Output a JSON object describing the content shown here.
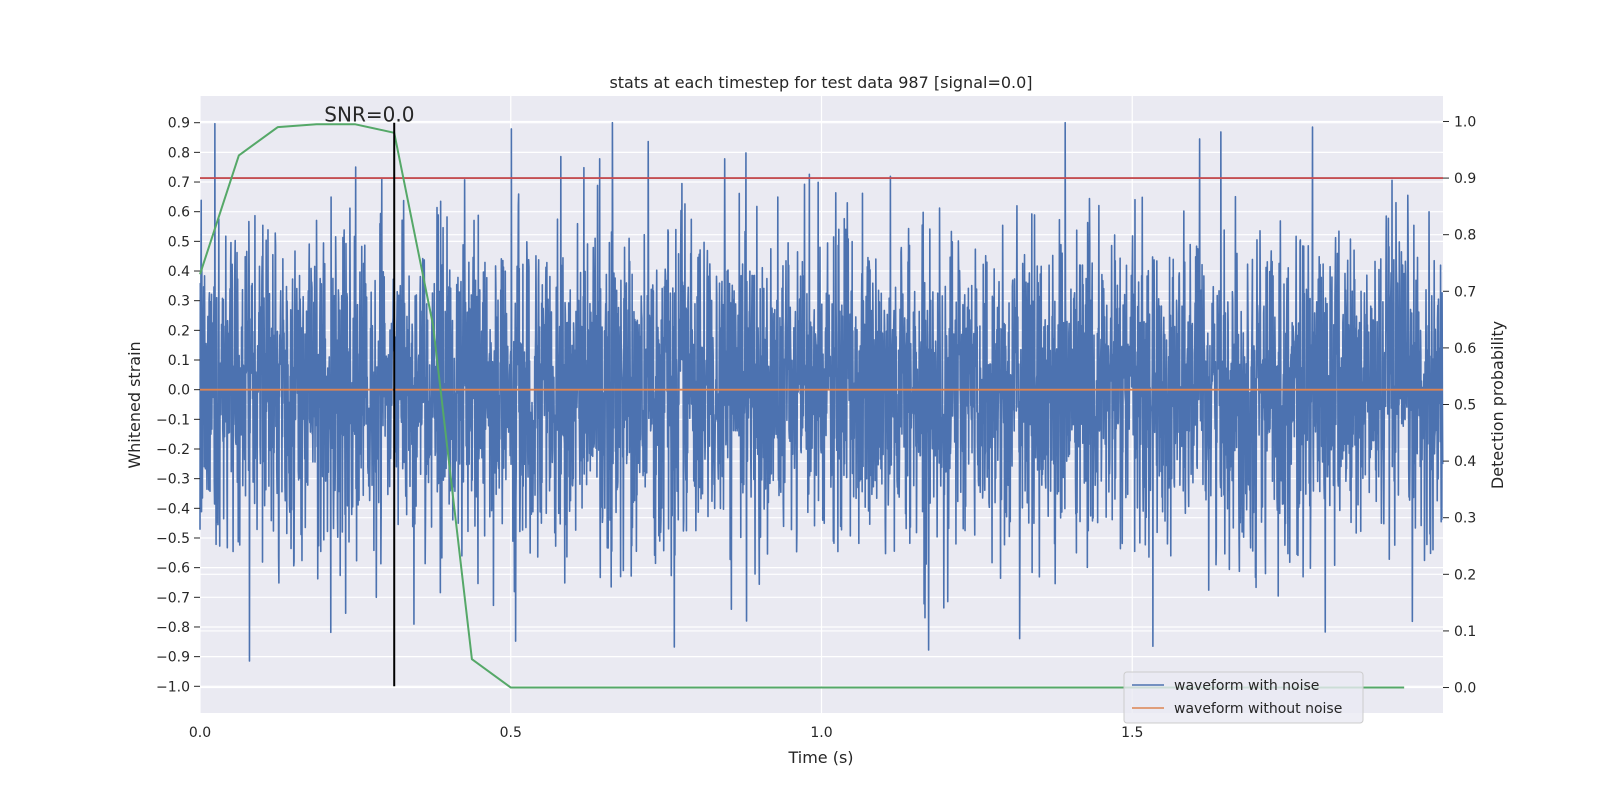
{
  "chart_data": {
    "type": "line",
    "title": "stats at each timestep for test data 987 [signal=0.0]",
    "xlabel": "Time (s)",
    "ylabel_left": "Whitened strain",
    "ylabel_right": "Detection probability",
    "xlim": [
      0.0,
      2.0
    ],
    "ylim_left": [
      -1.09,
      0.99
    ],
    "ylim_right": [
      -0.045,
      1.045
    ],
    "xticks": [
      0.0,
      0.5,
      1.0,
      1.5
    ],
    "xtick_labels": [
      "0.0",
      "0.5",
      "1.0",
      "1.5"
    ],
    "yticks_left": [
      0.9,
      0.8,
      0.7,
      0.6,
      0.5,
      0.4,
      0.3,
      0.2,
      0.1,
      0.0,
      -0.1,
      -0.2,
      -0.3,
      -0.4,
      -0.5,
      -0.6,
      -0.7,
      -0.8,
      -0.9,
      -1.0
    ],
    "ytick_labels_left": [
      "0.9",
      "0.8",
      "0.7",
      "0.6",
      "0.5",
      "0.4",
      "0.3",
      "0.2",
      "0.1",
      "0.0",
      "−0.1",
      "−0.2",
      "−0.3",
      "−0.4",
      "−0.5",
      "−0.6",
      "−0.7",
      "−0.8",
      "−0.9",
      "−1.0"
    ],
    "yticks_right": [
      1.0,
      0.9,
      0.8,
      0.7,
      0.6,
      0.5,
      0.4,
      0.3,
      0.2,
      0.1,
      0.0
    ],
    "ytick_labels_right": [
      "1.0",
      "0.9",
      "0.8",
      "0.7",
      "0.6",
      "0.5",
      "0.4",
      "0.3",
      "0.2",
      "0.1",
      "0.0"
    ],
    "series": [
      {
        "name": "waveform with noise",
        "color": "#4c72b0",
        "axis": "left",
        "kind": "noise",
        "sample_rate": 2048,
        "duration": 2.0,
        "approx_std": 0.26,
        "range": [
          -1.0,
          0.9
        ]
      },
      {
        "name": "waveform without noise",
        "color": "#dd8452",
        "axis": "left",
        "x": [
          0.0,
          2.0
        ],
        "y": [
          0.0,
          0.0
        ]
      },
      {
        "name": "detection probability",
        "color": "#55a868",
        "axis": "right",
        "x": [
          0.0,
          0.0625,
          0.125,
          0.1875,
          0.25,
          0.3125,
          0.375,
          0.4375,
          0.5,
          0.5625,
          0.625,
          0.75,
          1.0,
          1.25,
          1.5,
          1.75,
          1.9375
        ],
        "y": [
          0.73,
          0.94,
          0.99,
          0.995,
          0.995,
          0.98,
          0.64,
          0.05,
          0.0,
          0.0,
          0.0,
          0.0,
          0.0,
          0.0,
          0.0,
          0.0,
          0.0
        ]
      },
      {
        "name": "detection threshold",
        "color": "#c44e52",
        "axis": "right",
        "x": [
          0.0,
          2.0
        ],
        "y": [
          0.9,
          0.9
        ]
      }
    ],
    "marker_line": {
      "x": 0.3125,
      "y_range": [
        -1.0,
        0.9
      ],
      "color": "#000000"
    },
    "annotation": {
      "text": "SNR=0.0",
      "x": 0.2,
      "y": 0.9
    },
    "legend": {
      "location": "lower-right",
      "entries": [
        {
          "label": "waveform with noise",
          "color": "#4c72b0"
        },
        {
          "label": "waveform without noise",
          "color": "#dd8452"
        }
      ]
    },
    "style": {
      "background": "#eaeaf2",
      "grid": true,
      "grid_color": "#ffffff"
    }
  }
}
